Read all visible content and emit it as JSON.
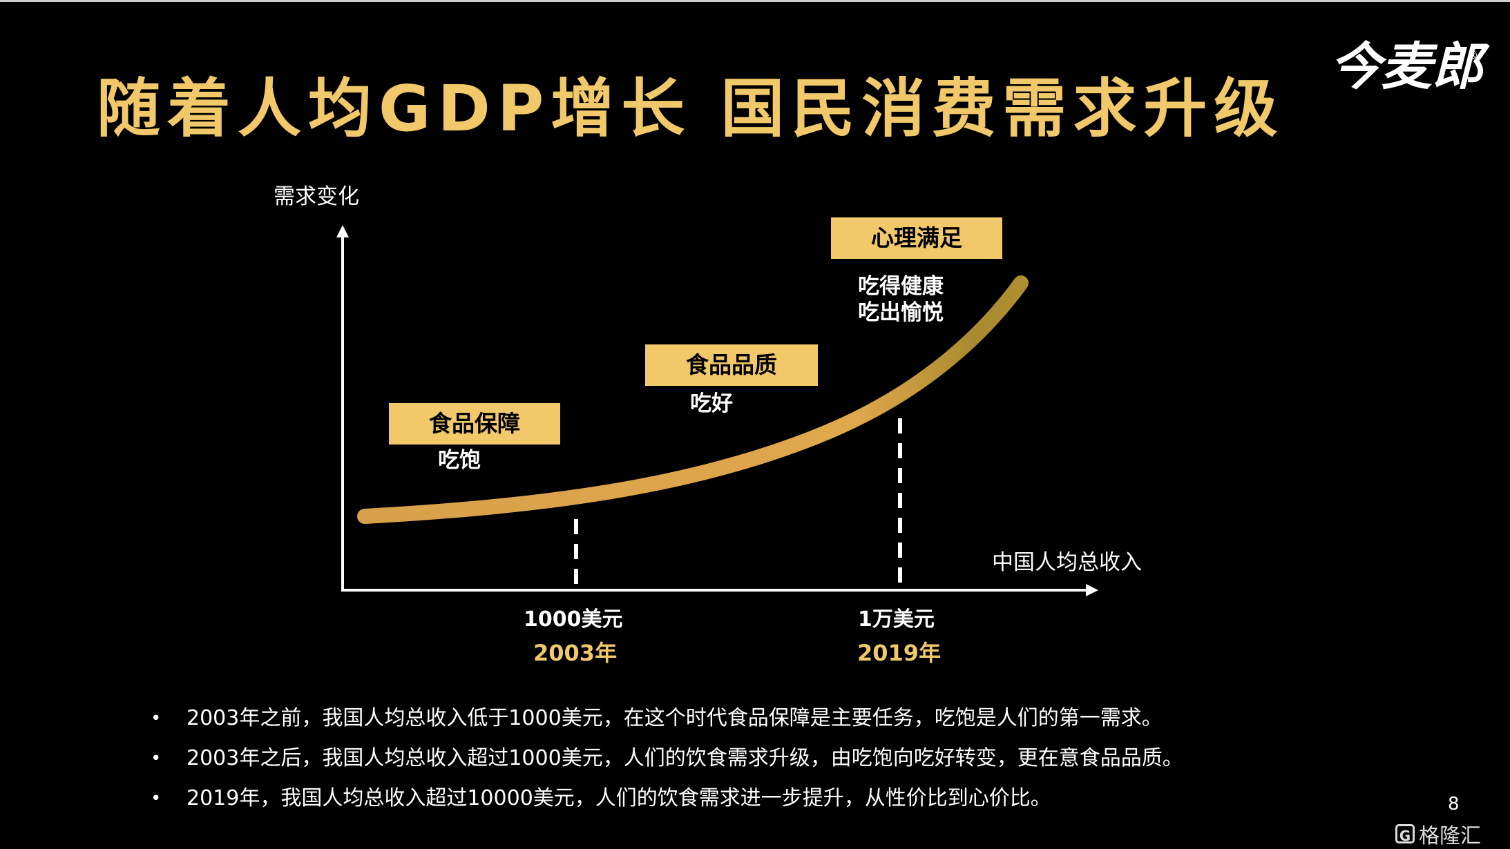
{
  "slide": {
    "title": "随着人均GDP增长  国民消费需求升级",
    "brand": "今麦郎",
    "brand_mark": "®",
    "page_number": "8",
    "accent_color": "#f2c96a",
    "background_color": "#000000"
  },
  "diagram": {
    "y_axis_label": "需求变化",
    "x_axis_label": "中国人均总收入",
    "stages": [
      {
        "label": "食品保障",
        "description": [
          "吃饱"
        ]
      },
      {
        "label": "食品品质",
        "description": [
          "吃好"
        ]
      },
      {
        "label": "心理满足",
        "description": [
          "吃得健康",
          "吃出愉悦"
        ]
      }
    ],
    "markers": [
      {
        "income": "1000美元",
        "year": "2003年"
      },
      {
        "income": "1万美元",
        "year": "2019年"
      }
    ]
  },
  "bullets": [
    "2003年之前，我国人均总收入低于1000美元，在这个时代食品保障是主要任务，吃饱是人们的第一需求。",
    "2003年之后，我国人均总收入超过1000美元，人们的饮食需求升级，由吃饱向吃好转变，更在意食品品质。",
    "2019年，我国人均总收入超过10000美元，人们的饮食需求进一步提升，从性价比到心价比。"
  ],
  "bullet_symbol": "•",
  "watermark": {
    "icon": "G",
    "text": "格隆汇"
  }
}
